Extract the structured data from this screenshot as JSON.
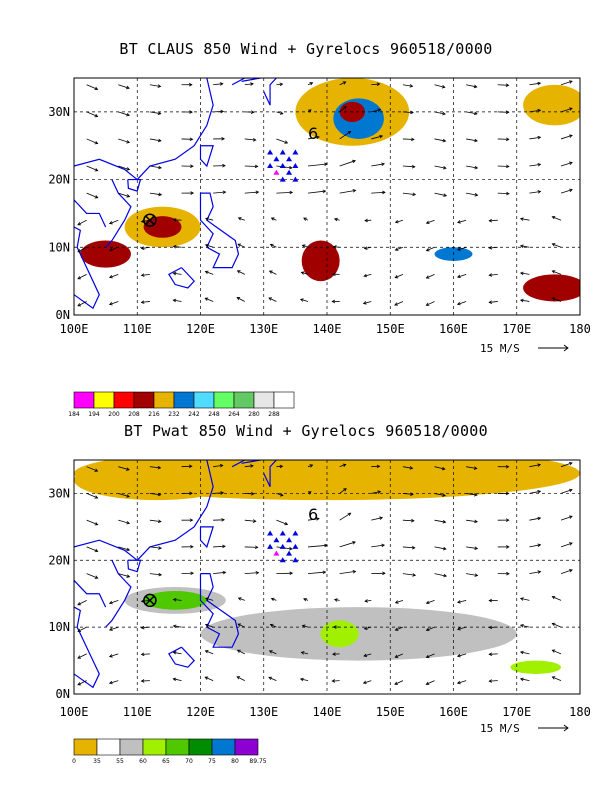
{
  "chart_data": [
    {
      "type": "heatmap",
      "title": "BT CLAUS 850 Wind + Gyrelocs 960518/0000",
      "x_ticks": [
        "100E",
        "110E",
        "120E",
        "130E",
        "140E",
        "150E",
        "160E",
        "170E",
        "180"
      ],
      "y_ticks": [
        "0N",
        "10N",
        "20N",
        "30N"
      ],
      "xlim": [
        100,
        180
      ],
      "ylim": [
        0,
        35
      ],
      "grid": true,
      "reference_vector_label": "15 M/S",
      "storm_label": "6",
      "colorbar": {
        "labels": [
          "184",
          "194",
          "200",
          "208",
          "216",
          "232",
          "242",
          "248",
          "264",
          "280",
          "288"
        ],
        "colors": [
          "#ff00ff",
          "#ffff00",
          "#ff0000",
          "#a00000",
          "#e6b400",
          "#0078d2",
          "#50dcff",
          "#64ff64",
          "#64c864",
          "#e6e6e6",
          "#ffffff"
        ]
      },
      "cloud_regions": [
        {
          "lon": 144,
          "lat": 30,
          "rx": 9,
          "ry": 5,
          "level": "#e6b400"
        },
        {
          "lon": 145,
          "lat": 29,
          "rx": 4,
          "ry": 3,
          "level": "#0078d2"
        },
        {
          "lon": 144,
          "lat": 30,
          "rx": 2,
          "ry": 1.5,
          "level": "#a00000"
        },
        {
          "lon": 176,
          "lat": 31,
          "rx": 5,
          "ry": 3,
          "level": "#e6b400"
        },
        {
          "lon": 114,
          "lat": 13,
          "rx": 6,
          "ry": 3,
          "level": "#e6b400"
        },
        {
          "lon": 114,
          "lat": 13,
          "rx": 3,
          "ry": 1.6,
          "level": "#a00000"
        },
        {
          "lon": 105,
          "lat": 9,
          "rx": 4,
          "ry": 2,
          "level": "#a00000"
        },
        {
          "lon": 139,
          "lat": 8,
          "rx": 3,
          "ry": 3,
          "level": "#a00000"
        },
        {
          "lon": 176,
          "lat": 4,
          "rx": 5,
          "ry": 2,
          "level": "#a00000"
        },
        {
          "lon": 160,
          "lat": 9,
          "rx": 3,
          "ry": 1,
          "level": "#0078d2"
        }
      ]
    },
    {
      "type": "heatmap",
      "title": "BT Pwat 850 Wind + Gyrelocs 960518/0000",
      "x_ticks": [
        "100E",
        "110E",
        "120E",
        "130E",
        "140E",
        "150E",
        "160E",
        "170E",
        "180"
      ],
      "y_ticks": [
        "0N",
        "10N",
        "20N",
        "30N"
      ],
      "xlim": [
        100,
        180
      ],
      "ylim": [
        0,
        35
      ],
      "grid": true,
      "reference_vector_label": "15 M/S",
      "storm_label": "6",
      "colorbar": {
        "labels": [
          "0",
          "35",
          "55",
          "60",
          "65",
          "70",
          "75",
          "80",
          "89.75"
        ],
        "colors": [
          "#e6b400",
          "#ffffff",
          "#c0c0c0",
          "#a0f000",
          "#50c800",
          "#008c00",
          "#0078d2",
          "#8c00d2"
        ]
      },
      "moisture_regions": [
        {
          "lon": 140,
          "lat": 33,
          "rx": 40,
          "ry": 4,
          "level": "#e6b400"
        },
        {
          "lon": 113,
          "lat": 32,
          "rx": 13,
          "ry": 3,
          "level": "#e6b400"
        },
        {
          "lon": 145,
          "lat": 9,
          "rx": 25,
          "ry": 4,
          "level": "#c0c0c0"
        },
        {
          "lon": 116,
          "lat": 14,
          "rx": 8,
          "ry": 2,
          "level": "#c0c0c0"
        },
        {
          "lon": 116,
          "lat": 14,
          "rx": 5,
          "ry": 1.4,
          "level": "#50c800"
        },
        {
          "lon": 142,
          "lat": 9,
          "rx": 3,
          "ry": 2,
          "level": "#a0f000"
        },
        {
          "lon": 173,
          "lat": 4,
          "rx": 4,
          "ry": 1,
          "level": "#a0f000"
        }
      ]
    }
  ]
}
